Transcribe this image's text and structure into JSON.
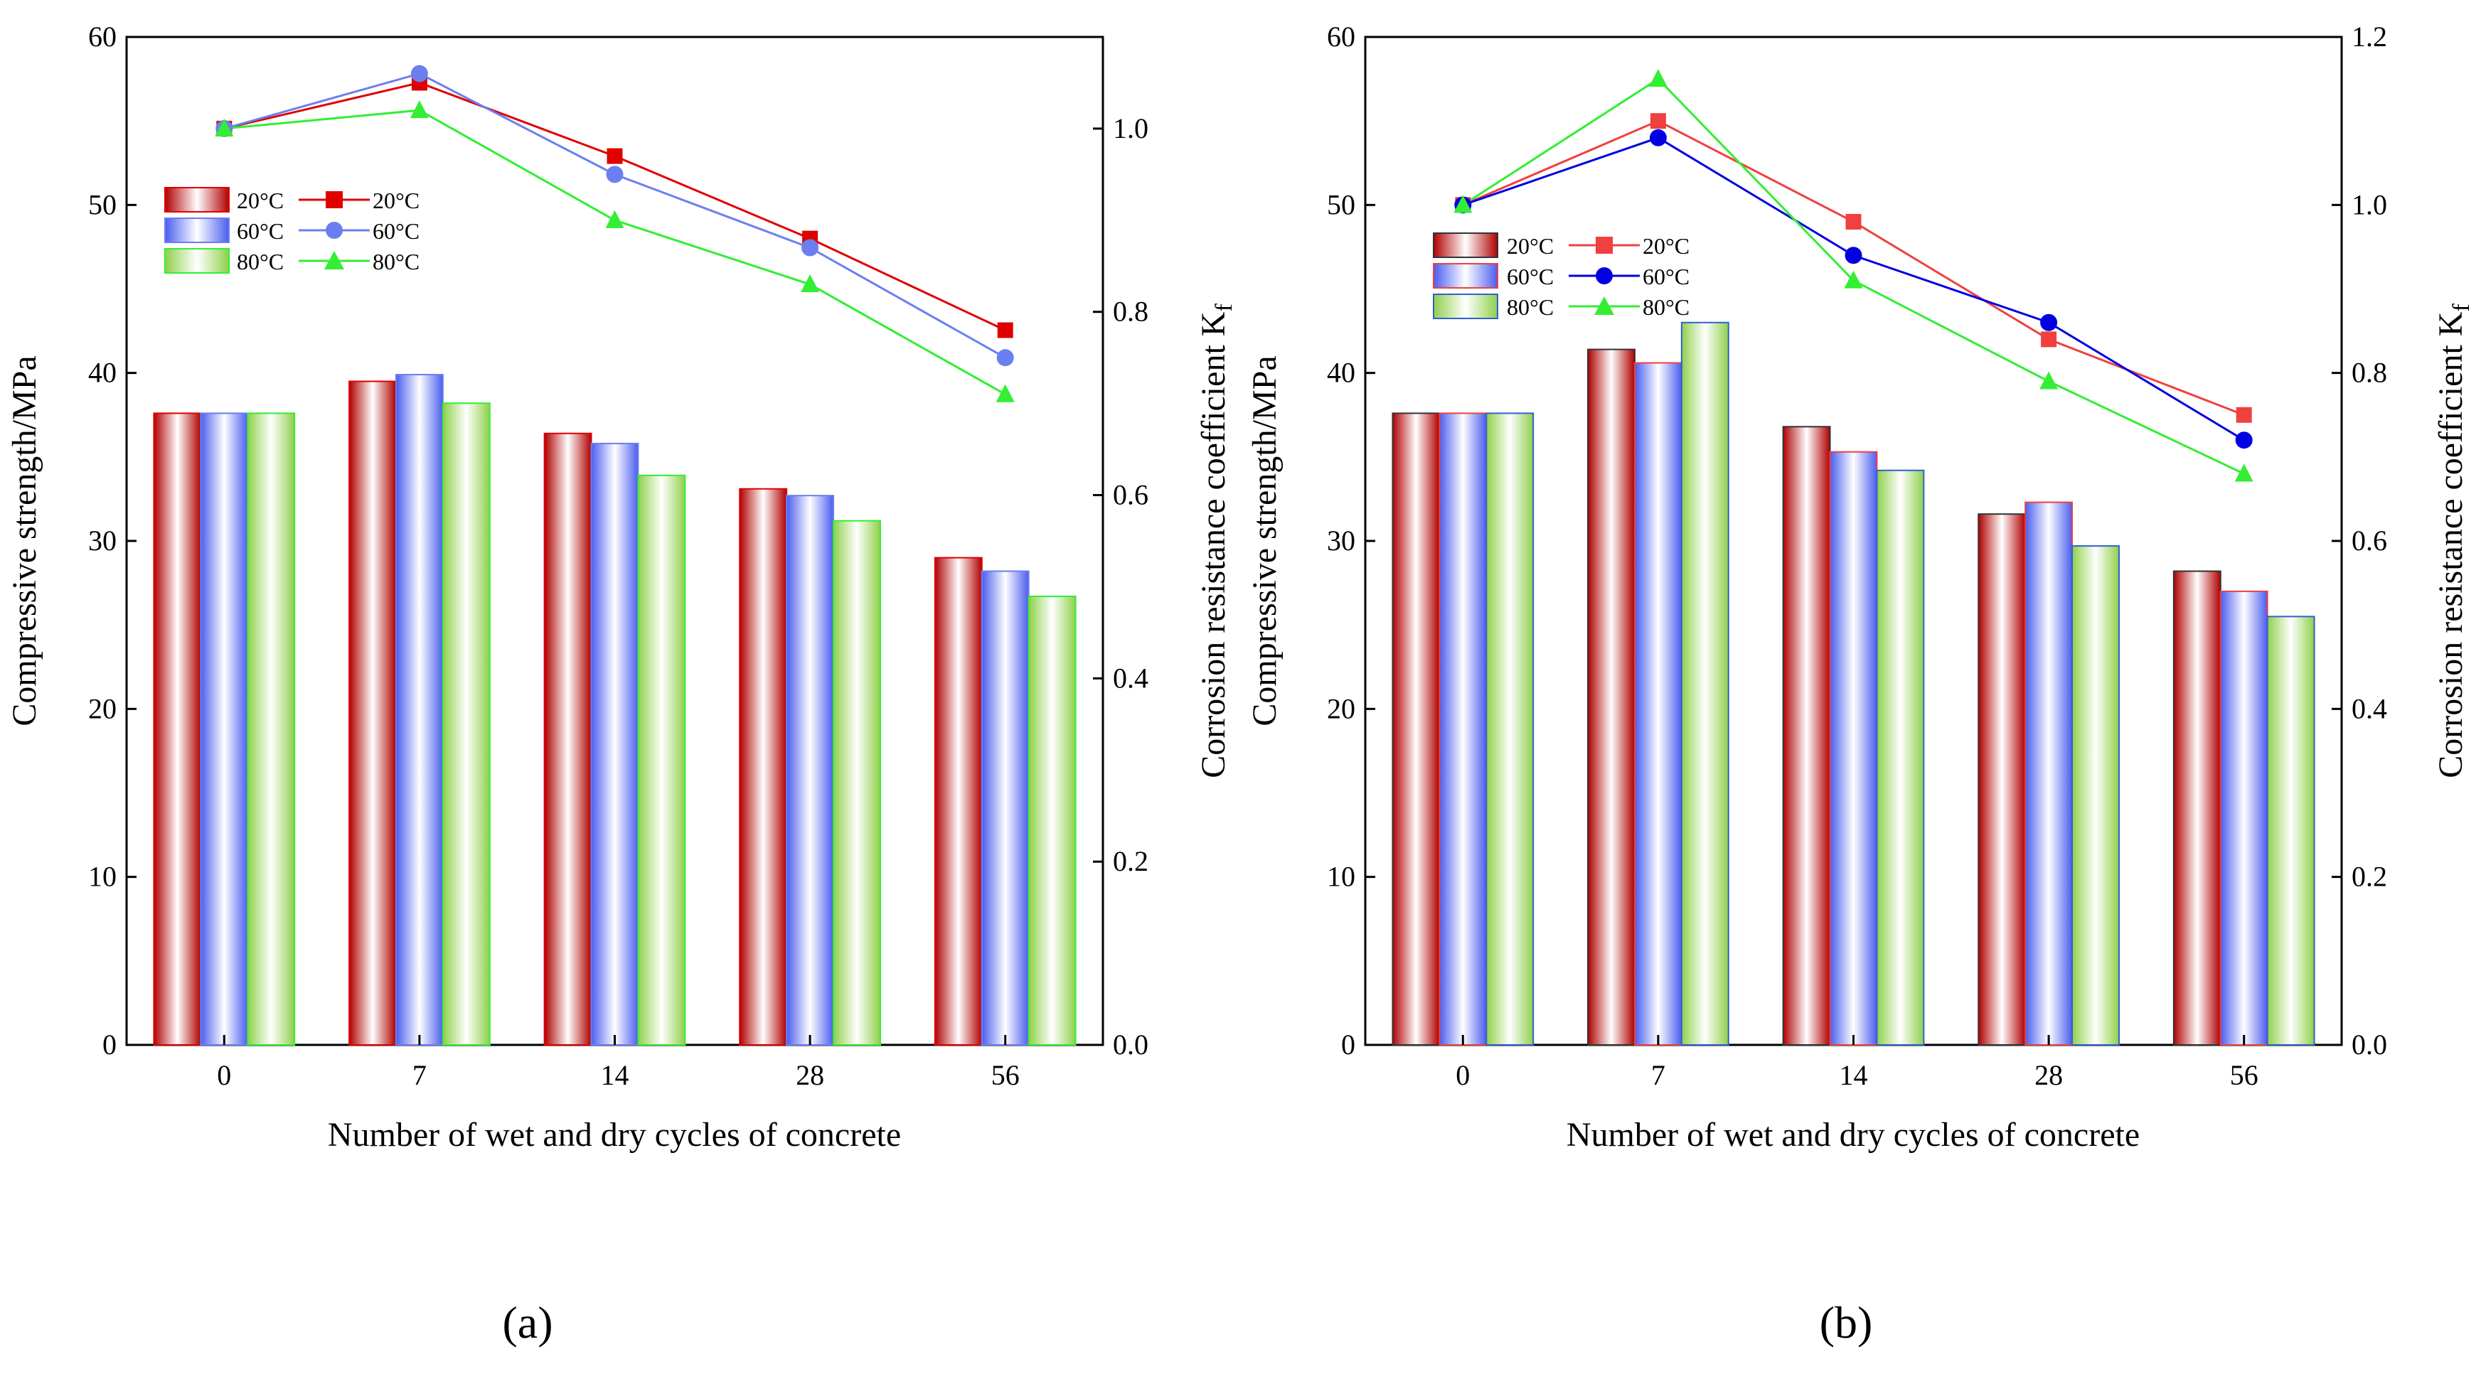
{
  "figure": {
    "panels": [
      "a",
      "b"
    ]
  },
  "colors": {
    "red": "#e00000",
    "red_b": "#f04040",
    "blue": "#6b7ff0",
    "blue_b": "#0000e0",
    "green": "#33ee33",
    "bar_red": "#b00000",
    "bar_blue": "#5b6cf5",
    "bar_green": "#9bd35b"
  },
  "chart_data": [
    {
      "id": "a",
      "panel_label": "(a)",
      "type": "bar",
      "categories": [
        "0",
        "7",
        "14",
        "28",
        "56"
      ],
      "xlabel": "Number of wet and dry cycles of concrete",
      "ylabel": "Compressive strength/MPa",
      "ylabel2": "Corrosion resistance coefficient K",
      "ylabel2_sub": "f",
      "ylim": [
        0,
        60
      ],
      "yticks": [
        "0",
        "10",
        "20",
        "30",
        "40",
        "50",
        "60"
      ],
      "y2lim": [
        0,
        1.1
      ],
      "y2ticks": [
        "0.0",
        "0.2",
        "0.4",
        "0.6",
        "0.8",
        "1.0"
      ],
      "series": [
        {
          "name": "20°C",
          "values": [
            37.6,
            39.5,
            36.4,
            33.1,
            29.0
          ]
        },
        {
          "name": "60°C",
          "values": [
            37.6,
            39.9,
            35.8,
            32.7,
            28.2
          ]
        },
        {
          "name": "80°C",
          "values": [
            37.6,
            38.2,
            33.9,
            31.2,
            26.7
          ]
        }
      ],
      "line_series": [
        {
          "name": "20°C",
          "marker": "square",
          "values": [
            1.0,
            1.05,
            0.97,
            0.88,
            0.78
          ]
        },
        {
          "name": "60°C",
          "marker": "circle",
          "values": [
            1.0,
            1.06,
            0.95,
            0.87,
            0.75
          ]
        },
        {
          "name": "80°C",
          "marker": "triangle",
          "values": [
            1.0,
            1.02,
            0.9,
            0.83,
            0.71
          ]
        }
      ],
      "legend": {
        "bar_labels": [
          "20°C",
          "60°C",
          "80°C"
        ],
        "line_labels": [
          "20°C",
          "60°C",
          "80°C"
        ]
      }
    },
    {
      "id": "b",
      "panel_label": "(b)",
      "type": "bar",
      "categories": [
        "0",
        "7",
        "14",
        "28",
        "56"
      ],
      "xlabel": "Number of wet and dry cycles of concrete",
      "ylabel": "Compressive strength/MPa",
      "ylabel2": "Corrosion resistance coefficient K",
      "ylabel2_sub": "f",
      "ylim": [
        0,
        60
      ],
      "yticks": [
        "0",
        "10",
        "20",
        "30",
        "40",
        "50",
        "60"
      ],
      "y2lim": [
        0,
        1.2
      ],
      "y2ticks": [
        "0.0",
        "0.2",
        "0.4",
        "0.6",
        "0.8",
        "1.0",
        "1.2"
      ],
      "series": [
        {
          "name": "20°C",
          "values": [
            37.6,
            41.4,
            36.8,
            31.6,
            28.2
          ]
        },
        {
          "name": "60°C",
          "values": [
            37.6,
            40.6,
            35.3,
            32.3,
            27.0
          ]
        },
        {
          "name": "80°C",
          "values": [
            37.6,
            43.0,
            34.2,
            29.7,
            25.5
          ]
        }
      ],
      "line_series": [
        {
          "name": "20°C",
          "marker": "square",
          "values": [
            1.0,
            1.1,
            0.98,
            0.84,
            0.75
          ]
        },
        {
          "name": "60°C",
          "marker": "circle",
          "values": [
            1.0,
            1.08,
            0.94,
            0.86,
            0.72
          ]
        },
        {
          "name": "80°C",
          "marker": "triangle",
          "values": [
            1.0,
            1.15,
            0.91,
            0.79,
            0.68
          ]
        }
      ],
      "legend": {
        "bar_labels": [
          "20°C",
          "60°C",
          "80°C"
        ],
        "line_labels": [
          "20°C",
          "60°C",
          "80°C"
        ]
      }
    }
  ]
}
